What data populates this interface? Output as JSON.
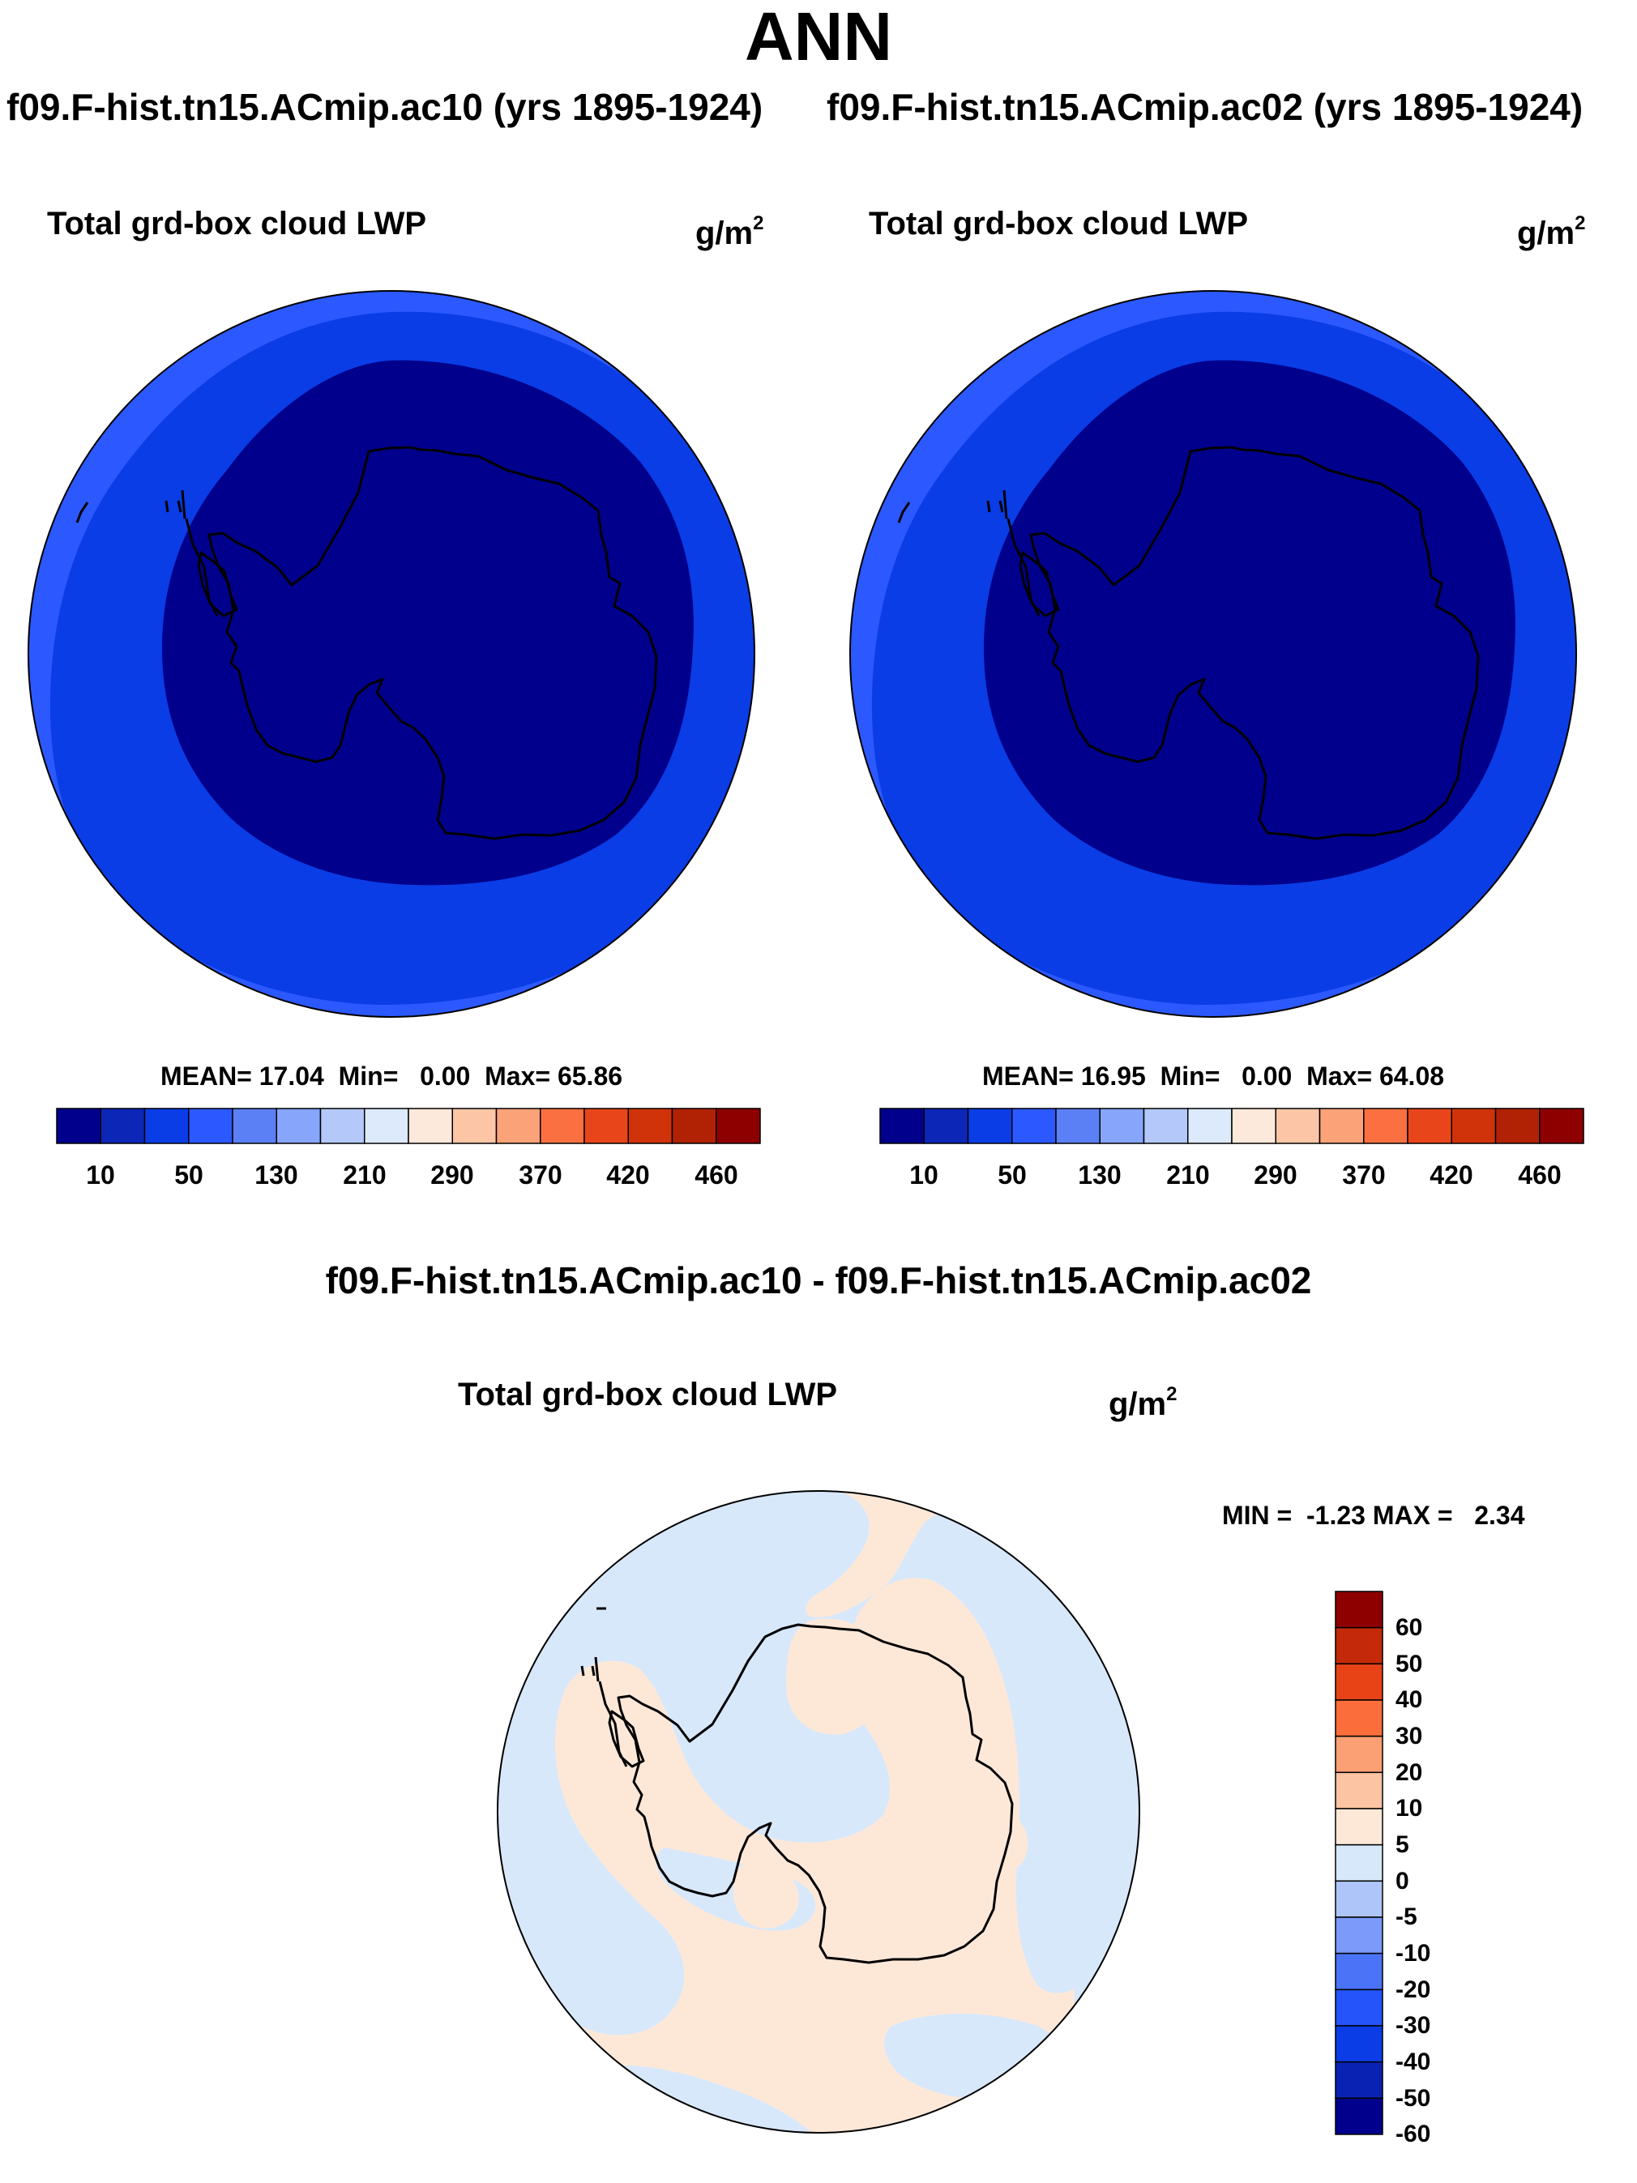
{
  "title": "ANN",
  "cases": {
    "left": "f09.F-hist.tn15.ACmip.ac10 (yrs 1895-1924)",
    "right": "f09.F-hist.tn15.ACmip.ac02 (yrs 1895-1924)"
  },
  "panels": [
    {
      "variable": "Total grd-box cloud LWP",
      "units": "g/m",
      "units_exp": "2",
      "stats": {
        "mean_label": "MEAN=",
        "mean": "17.04",
        "min_label": "Min=",
        "min": "0.00",
        "max_label": "Max=",
        "max": "65.86"
      }
    },
    {
      "variable": "Total grd-box cloud LWP",
      "units": "g/m",
      "units_exp": "2",
      "stats": {
        "mean_label": "MEAN=",
        "mean": "16.95",
        "min_label": "Min=",
        "min": "0.00",
        "max_label": "Max=",
        "max": "64.08"
      }
    }
  ],
  "colorbar": {
    "colors": [
      "#00008c",
      "#0c26b8",
      "#0a3de6",
      "#2b59ff",
      "#5b7ff5",
      "#87a5fa",
      "#b4c8fa",
      "#ddeafc",
      "#fde9db",
      "#fcc6a6",
      "#fca278",
      "#fb7040",
      "#e8461a",
      "#d0330a",
      "#b12205",
      "#8e0000"
    ],
    "tick_labels": [
      "10",
      "50",
      "130",
      "210",
      "290",
      "370",
      "420",
      "460"
    ]
  },
  "difference": {
    "title": "f09.F-hist.tn15.ACmip.ac10 - f09.F-hist.tn15.ACmip.ac02",
    "variable": "Total grd-box cloud LWP",
    "units": "g/m",
    "units_exp": "2",
    "minmax": {
      "min_label": "MIN =",
      "min": "-1.23",
      "max_label": "MAX =",
      "max": "2.34"
    },
    "colorbar": {
      "colors": [
        "#00008c",
        "#0a22b4",
        "#0a3de6",
        "#2454fa",
        "#4a73f7",
        "#7b9af9",
        "#aec5f9",
        "#d8e8fb",
        "#fde8d8",
        "#fcc4a3",
        "#fba074",
        "#fb6e3c",
        "#e84317",
        "#c42a0a",
        "#8e0000"
      ],
      "tick_labels": [
        "60",
        "50",
        "40",
        "30",
        "20",
        "10",
        "5",
        "0",
        "-5",
        "-10",
        "-20",
        "-30",
        "-40",
        "-50",
        "-60"
      ]
    },
    "field_colors": {
      "positive": "#fde8d8",
      "negative": "#d8e8fb"
    }
  }
}
